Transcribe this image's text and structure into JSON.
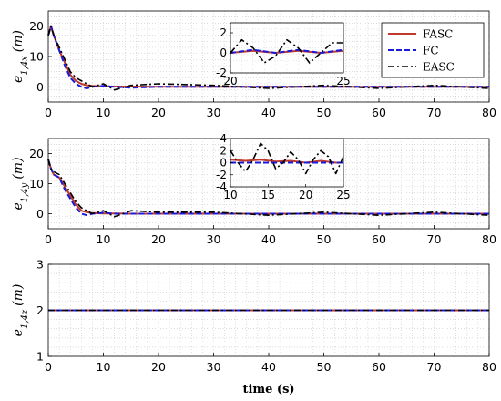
{
  "figure": {
    "xlabel": "time (s)",
    "legend_entries": [
      {
        "name": "FASC",
        "color": "#c0392b",
        "style": "solid"
      },
      {
        "name": "FC",
        "color": "#1a1adb",
        "style": "dashed"
      },
      {
        "name": "EASC",
        "color": "#000000",
        "style": "dashdot"
      }
    ]
  },
  "chart_data": [
    {
      "type": "line",
      "ylabel_main": "e",
      "ylabel_sub": "1,4x",
      "ylabel_unit": "(m)",
      "xlim": [
        0,
        80
      ],
      "ylim": [
        -5,
        25
      ],
      "xticks": [
        0,
        10,
        20,
        30,
        40,
        50,
        60,
        70,
        80
      ],
      "yticks": [
        0,
        10,
        20
      ],
      "grid": "minor-dotted",
      "legend_position": "top-right",
      "series": [
        {
          "name": "FASC",
          "x": [
            0,
            0.5,
            1,
            2,
            3,
            4,
            5,
            6,
            7,
            8,
            10,
            12,
            15,
            20,
            30,
            40,
            50,
            60,
            70,
            80
          ],
          "y": [
            17,
            20,
            17,
            12,
            8,
            4,
            2,
            1,
            0.5,
            0.3,
            0.2,
            0.1,
            0.1,
            0,
            0,
            0,
            0,
            0,
            0,
            0
          ]
        },
        {
          "name": "FC",
          "x": [
            0,
            0.5,
            1,
            2,
            3,
            4,
            5,
            6,
            7,
            8,
            10,
            12,
            15,
            20,
            30,
            40,
            50,
            60,
            70,
            80
          ],
          "y": [
            17,
            20,
            17,
            12,
            7,
            3,
            1,
            0,
            -0.5,
            0,
            0.3,
            0,
            -0.3,
            0,
            0,
            0,
            0,
            0,
            0,
            0
          ]
        },
        {
          "name": "EASC",
          "x": [
            0,
            0.5,
            1,
            2,
            3,
            4,
            5,
            6,
            7,
            8,
            10,
            12,
            15,
            20,
            30,
            40,
            50,
            60,
            70,
            80
          ],
          "y": [
            17,
            20,
            17,
            13,
            9,
            5,
            3,
            2,
            1,
            0,
            1,
            -1,
            0.5,
            1,
            0.5,
            -0.5,
            0.5,
            -0.5,
            0.5,
            -0.5
          ]
        }
      ],
      "inset": {
        "xlim": [
          20,
          25
        ],
        "ylim": [
          -2,
          3
        ],
        "xticks": [
          20,
          25
        ],
        "yticks": [
          -2,
          0,
          2
        ],
        "series": [
          {
            "name": "FASC",
            "x": [
              20,
              21,
              22,
              23,
              24,
              25
            ],
            "y": [
              0,
              0.2,
              0,
              0.2,
              0,
              0.2
            ]
          },
          {
            "name": "FC",
            "x": [
              20,
              21,
              22,
              23,
              24,
              25
            ],
            "y": [
              0,
              0.3,
              0,
              0.3,
              0,
              0.3
            ]
          },
          {
            "name": "EASC",
            "x": [
              20,
              20.5,
              21,
              21.5,
              22,
              22.5,
              23,
              23.5,
              24,
              24.5,
              25
            ],
            "y": [
              0,
              1.3,
              0.5,
              -1,
              -0.3,
              1.3,
              0.5,
              -1,
              0,
              1,
              1
            ]
          }
        ]
      }
    },
    {
      "type": "line",
      "ylabel_main": "e",
      "ylabel_sub": "1,4y",
      "ylabel_unit": "(m)",
      "xlim": [
        0,
        80
      ],
      "ylim": [
        -5,
        25
      ],
      "xticks": [
        0,
        10,
        20,
        30,
        40,
        50,
        60,
        70,
        80
      ],
      "yticks": [
        0,
        10,
        20
      ],
      "grid": "minor-dotted",
      "series": [
        {
          "name": "FASC",
          "x": [
            0,
            0.5,
            1,
            2,
            3,
            4,
            5,
            6,
            7,
            8,
            10,
            12,
            15,
            20,
            30,
            40,
            50,
            60,
            70,
            80
          ],
          "y": [
            18,
            15,
            13,
            12,
            9,
            6,
            3,
            1,
            0.5,
            0.2,
            0.1,
            0.1,
            0,
            0,
            0,
            0,
            0,
            0,
            0,
            0
          ]
        },
        {
          "name": "FC",
          "x": [
            0,
            0.5,
            1,
            2,
            3,
            4,
            5,
            6,
            7,
            8,
            10,
            12,
            15,
            20,
            30,
            40,
            50,
            60,
            70,
            80
          ],
          "y": [
            18,
            15,
            13,
            12,
            8,
            5,
            2,
            0,
            -0.5,
            0,
            0.3,
            0,
            0,
            0,
            0,
            0,
            0,
            0,
            0,
            0
          ]
        },
        {
          "name": "EASC",
          "x": [
            0,
            0.5,
            1,
            2,
            3,
            4,
            5,
            6,
            7,
            8,
            10,
            12,
            15,
            20,
            30,
            40,
            50,
            60,
            70,
            80
          ],
          "y": [
            18,
            15,
            14,
            13,
            10,
            7,
            4,
            2,
            1,
            0,
            1,
            -1,
            1,
            0.5,
            0.5,
            -0.5,
            0.5,
            -0.5,
            0.5,
            -0.5
          ]
        }
      ],
      "inset": {
        "xlim": [
          10,
          25
        ],
        "ylim": [
          -4,
          4
        ],
        "xticks": [
          10,
          15,
          20,
          25
        ],
        "yticks": [
          -4,
          -2,
          0,
          2,
          4
        ],
        "series": [
          {
            "name": "FASC",
            "x": [
              10,
              12,
              14,
              16,
              18,
              20,
              22,
              24,
              25
            ],
            "y": [
              0.5,
              0.3,
              0.5,
              0.2,
              0.3,
              0,
              0.3,
              0,
              0
            ]
          },
          {
            "name": "FC",
            "x": [
              10,
              12,
              14,
              16,
              18,
              20,
              22,
              24,
              25
            ],
            "y": [
              0,
              0,
              0,
              0,
              0,
              0,
              0,
              0,
              0
            ]
          },
          {
            "name": "EASC",
            "x": [
              10,
              11,
              12,
              13,
              14,
              15,
              16,
              17,
              18,
              19,
              20,
              21,
              22,
              23,
              24,
              25
            ],
            "y": [
              2,
              0,
              -1.5,
              0.5,
              3.2,
              2,
              -1,
              0,
              1.8,
              0.5,
              -1.8,
              0.5,
              2,
              1,
              -1.8,
              1
            ]
          }
        ]
      }
    },
    {
      "type": "line",
      "ylabel_main": "e",
      "ylabel_sub": "1,4z",
      "ylabel_unit": "(m)",
      "xlim": [
        0,
        80
      ],
      "ylim": [
        1,
        3
      ],
      "xticks": [
        0,
        10,
        20,
        30,
        40,
        50,
        60,
        70,
        80
      ],
      "yticks": [
        1,
        2,
        3
      ],
      "grid": "minor-dotted",
      "series": [
        {
          "name": "FASC",
          "x": [
            0,
            80
          ],
          "y": [
            2,
            2
          ]
        },
        {
          "name": "FC",
          "x": [
            0,
            80
          ],
          "y": [
            2,
            2
          ]
        },
        {
          "name": "EASC",
          "x": [
            0,
            80
          ],
          "y": [
            2,
            2
          ]
        }
      ]
    }
  ]
}
